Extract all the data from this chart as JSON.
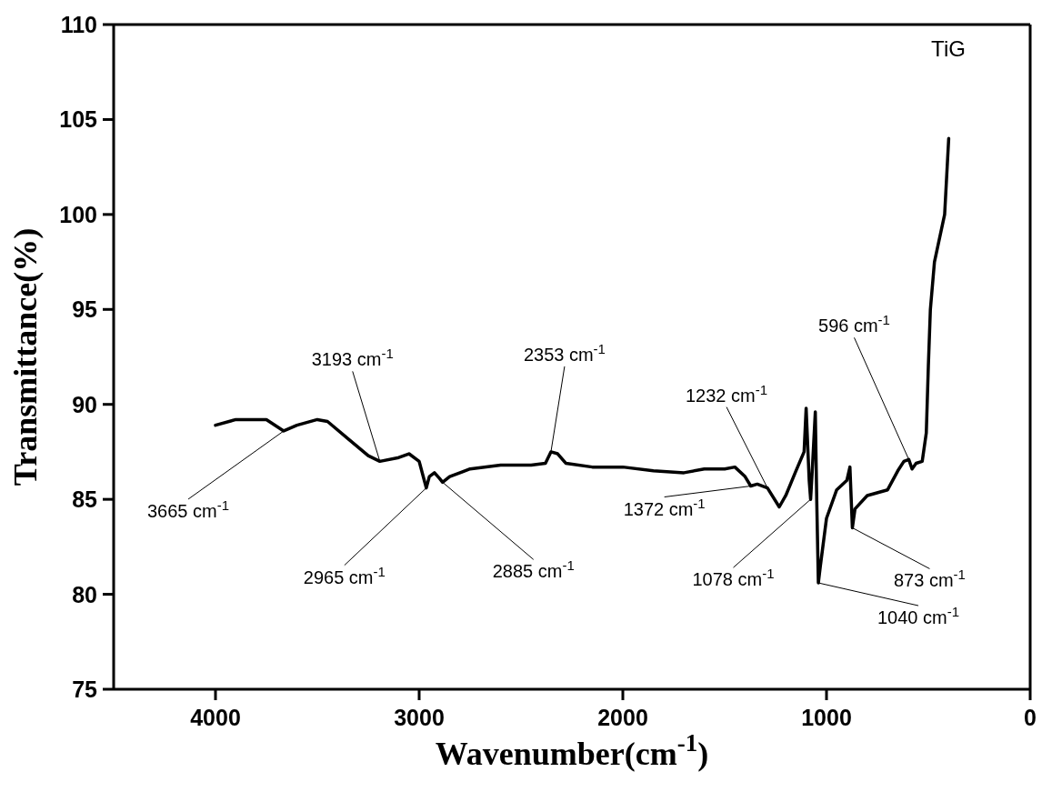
{
  "chart_data": {
    "type": "line",
    "title": "TiG",
    "xlabel": "Wavenumber(cm$^{-1}$)",
    "ylabel": "Transmittance(%)",
    "xlim": [
      4500,
      0
    ],
    "xticks": [
      4000,
      3000,
      2000,
      1000,
      0
    ],
    "ylim": [
      75,
      110
    ],
    "yticks": [
      75,
      80,
      85,
      90,
      95,
      100,
      105,
      110
    ],
    "grid": false,
    "marker": "none",
    "line_style": "solid",
    "series": [
      {
        "color": "#000000",
        "x": [
          4000,
          3900,
          3750,
          3665,
          3600,
          3500,
          3450,
          3350,
          3250,
          3193,
          3100,
          3050,
          3000,
          2975,
          2965,
          2950,
          2925,
          2900,
          2885,
          2850,
          2750,
          2600,
          2450,
          2380,
          2353,
          2320,
          2280,
          2150,
          2000,
          1850,
          1700,
          1600,
          1500,
          1450,
          1400,
          1372,
          1340,
          1290,
          1232,
          1200,
          1150,
          1110,
          1100,
          1085,
          1078,
          1070,
          1055,
          1048,
          1040,
          1030,
          1000,
          950,
          900,
          885,
          873,
          860,
          800,
          700,
          650,
          620,
          596,
          580,
          560,
          530,
          510,
          500,
          490,
          470,
          450,
          420,
          400
        ],
        "values": [
          88.9,
          89.2,
          89.2,
          88.6,
          88.9,
          89.2,
          89.1,
          88.2,
          87.3,
          87.0,
          87.2,
          87.4,
          87.0,
          86.0,
          85.6,
          86.2,
          86.4,
          86.1,
          85.9,
          86.2,
          86.6,
          86.8,
          86.8,
          86.9,
          87.5,
          87.4,
          86.9,
          86.7,
          86.7,
          86.5,
          86.4,
          86.6,
          86.6,
          86.7,
          86.2,
          85.7,
          85.8,
          85.6,
          84.6,
          85.2,
          86.5,
          87.5,
          89.8,
          86.0,
          85.0,
          86.5,
          89.6,
          85.0,
          80.6,
          81.5,
          84.0,
          85.5,
          86.0,
          86.7,
          83.5,
          84.5,
          85.2,
          85.5,
          86.5,
          87.0,
          87.1,
          86.6,
          86.9,
          87.0,
          88.5,
          92.0,
          95.0,
          97.5,
          98.5,
          100.0,
          104.0
        ]
      }
    ],
    "annotations": [
      {
        "text": "3665 cm$^{-1}$",
        "x": 3665,
        "y": 88.6
      },
      {
        "text": "3193 cm$^{-1}$",
        "x": 3193,
        "y": 87.0
      },
      {
        "text": "2965 cm$^{-1}$",
        "x": 2965,
        "y": 85.6
      },
      {
        "text": "2885 cm$^{-1}$",
        "x": 2885,
        "y": 85.9
      },
      {
        "text": "2353 cm$^{-1}$",
        "x": 2353,
        "y": 87.5
      },
      {
        "text": "1232 cm$^{-1}$",
        "x": 1290,
        "y": 85.6
      },
      {
        "text": "1372 cm$^{-1}$",
        "x": 1372,
        "y": 85.7
      },
      {
        "text": "1078 cm$^{-1}$",
        "x": 1078,
        "y": 85.0
      },
      {
        "text": "1040 cm$^{-1}$",
        "x": 1040,
        "y": 80.6
      },
      {
        "text": "873 cm$^{-1}$",
        "x": 873,
        "y": 83.5
      },
      {
        "text": "596 cm$^{-1}$",
        "x": 596,
        "y": 87.1
      }
    ]
  }
}
